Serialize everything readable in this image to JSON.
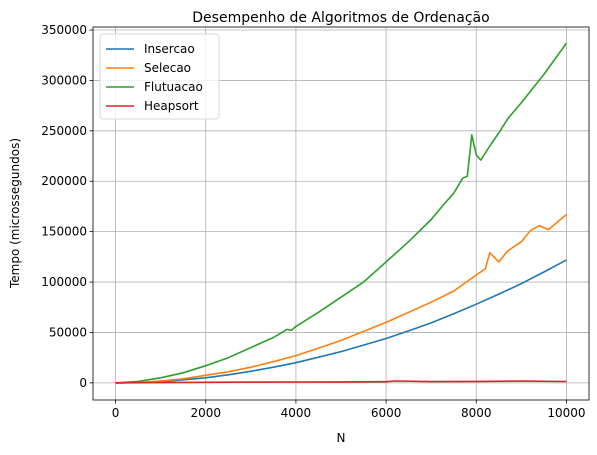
{
  "chart_data": {
    "type": "line",
    "title": "Desempenho de Algoritmos de Ordenação",
    "xlabel": "N",
    "ylabel": "Tempo (microssegundos)",
    "xlim": [
      -500,
      10500
    ],
    "ylim": [
      -17000,
      353000
    ],
    "xticks": [
      0,
      2000,
      4000,
      6000,
      8000,
      10000
    ],
    "xtick_labels": [
      "0",
      "2000",
      "4000",
      "6000",
      "8000",
      "10000"
    ],
    "yticks": [
      0,
      50000,
      100000,
      150000,
      200000,
      250000,
      300000,
      350000
    ],
    "ytick_labels": [
      "0",
      "50000",
      "100000",
      "150000",
      "200000",
      "250000",
      "300000",
      "350000"
    ],
    "grid": true,
    "legend_position": "top-left",
    "series": [
      {
        "name": "Insercao",
        "color": "#1f77b4",
        "x": [
          0,
          500,
          1000,
          1500,
          2000,
          2500,
          3000,
          3500,
          4000,
          4500,
          5000,
          5500,
          6000,
          6500,
          7000,
          7500,
          8000,
          8500,
          9000,
          9500,
          10000
        ],
        "y": [
          0,
          300,
          1200,
          3000,
          5000,
          8000,
          11500,
          15500,
          20000,
          25500,
          31000,
          37500,
          44000,
          51500,
          59500,
          68500,
          78000,
          88000,
          98500,
          110000,
          122000
        ]
      },
      {
        "name": "Selecao",
        "color": "#ff7f0e",
        "x": [
          0,
          500,
          1000,
          1500,
          2000,
          2500,
          3000,
          3500,
          4000,
          4500,
          5000,
          5500,
          6000,
          6500,
          7000,
          7500,
          8000,
          8200,
          8300,
          8500,
          8700,
          9000,
          9200,
          9400,
          9600,
          10000
        ],
        "y": [
          0,
          500,
          1800,
          4000,
          7500,
          11000,
          15500,
          21000,
          27000,
          34500,
          42000,
          51000,
          60000,
          70000,
          80000,
          91000,
          107000,
          113000,
          129000,
          120000,
          131000,
          140000,
          151000,
          156000,
          152000,
          167000
        ]
      },
      {
        "name": "Flutuacao",
        "color": "#2ca02c",
        "x": [
          0,
          500,
          1000,
          1500,
          2000,
          2500,
          3000,
          3500,
          3800,
          3900,
          4000,
          4500,
          5000,
          5500,
          6000,
          6500,
          7000,
          7300,
          7500,
          7700,
          7800,
          7900,
          8000,
          8100,
          8300,
          8500,
          8700,
          9000,
          9500,
          10000
        ],
        "y": [
          0,
          1500,
          5000,
          10000,
          17000,
          25000,
          35000,
          45000,
          53000,
          52000,
          56000,
          70000,
          85000,
          100000,
          120000,
          140000,
          162000,
          178000,
          188000,
          203000,
          205000,
          246000,
          226000,
          221000,
          235000,
          248000,
          262000,
          278000,
          306000,
          337000
        ]
      },
      {
        "name": "Heapsort",
        "color": "#d62728",
        "x": [
          0,
          1000,
          2000,
          3000,
          4000,
          5000,
          6000,
          6200,
          7000,
          8000,
          9000,
          10000
        ],
        "y": [
          0,
          300,
          600,
          800,
          900,
          1000,
          1200,
          1800,
          1300,
          1500,
          1700,
          1400
        ]
      }
    ]
  }
}
